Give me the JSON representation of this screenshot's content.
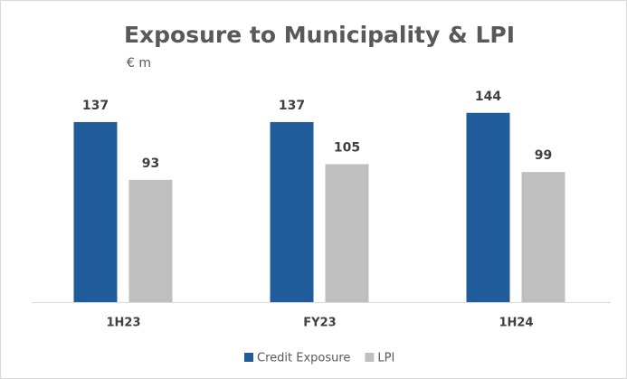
{
  "chart_data": {
    "type": "bar",
    "title": "Exposure to Municipality & LPI",
    "subtitle": "€ m",
    "categories": [
      "1H23",
      "FY23",
      "1H24"
    ],
    "series": [
      {
        "name": "Credit Exposure",
        "color": "#1f5c99",
        "values": [
          137,
          137,
          144
        ]
      },
      {
        "name": "LPI",
        "color": "#bfbfbf",
        "values": [
          93,
          105,
          99
        ]
      }
    ]
  }
}
